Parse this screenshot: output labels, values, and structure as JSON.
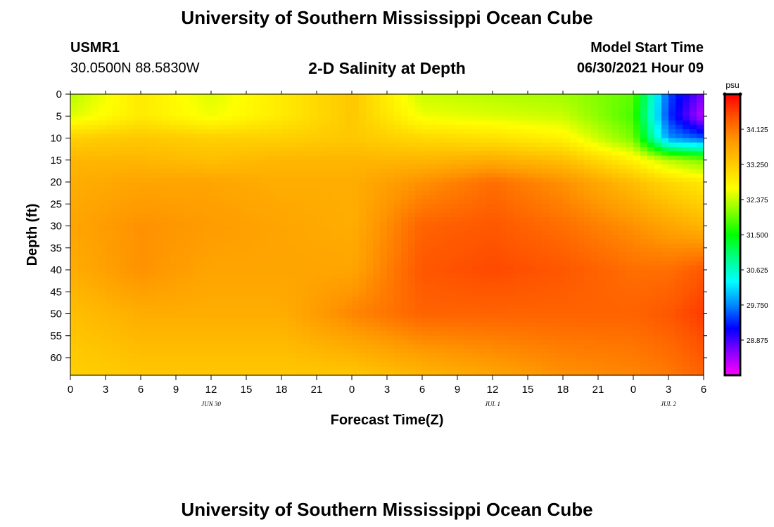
{
  "header": {
    "title": "University of Southern Mississippi Ocean Cube",
    "footer_title": "University of Southern Mississippi Ocean Cube",
    "station_id": "USMR1",
    "station_coords": "30.0500N  88.5830W",
    "plot_title": "2-D Salinity at Depth",
    "start_label": "Model Start Time",
    "start_value": "06/30/2021 Hour 09"
  },
  "chart_data": {
    "type": "heatmap",
    "title": "2-D Salinity at Depth",
    "xlabel": "Forecast Time(Z)",
    "ylabel": "Depth (ft)",
    "x_tick_labels": [
      "0",
      "3",
      "6",
      "9",
      "12",
      "15",
      "18",
      "21",
      "0",
      "3",
      "6",
      "9",
      "12",
      "15",
      "18",
      "21",
      "0",
      "3",
      "6"
    ],
    "x_hours": [
      0,
      3,
      6,
      9,
      12,
      15,
      18,
      21,
      24,
      27,
      30,
      33,
      36,
      39,
      42,
      45,
      48,
      51,
      54
    ],
    "date_labels": [
      {
        "hour": 12,
        "label": "JUN 30"
      },
      {
        "hour": 36,
        "label": "JUL 1"
      },
      {
        "hour": 51,
        "label": "JUL 2"
      }
    ],
    "y_ticks": [
      0,
      5,
      10,
      15,
      20,
      25,
      30,
      35,
      40,
      45,
      50,
      55,
      60
    ],
    "ylim": [
      0,
      64
    ],
    "xlim": [
      0,
      54
    ],
    "colorbar": {
      "unit": "psu",
      "tick_labels": [
        "34.125",
        "33.250",
        "32.375",
        "31.500",
        "30.625",
        "29.750",
        "28.875"
      ],
      "tick_values": [
        34.125,
        33.25,
        32.375,
        31.5,
        30.625,
        29.75,
        28.875
      ],
      "range": [
        28.0,
        35.0
      ],
      "colors": [
        "#ff00ff",
        "#8800ff",
        "#0000ff",
        "#0088ff",
        "#00ffff",
        "#00ff88",
        "#00ff00",
        "#88ff00",
        "#ffff00",
        "#ffcc00",
        "#ff9900",
        "#ff5500",
        "#ff0000"
      ]
    },
    "grid": {
      "hours": [
        0,
        6,
        12,
        18,
        24,
        30,
        36,
        42,
        48,
        51,
        54
      ],
      "depths": [
        0,
        5,
        10,
        15,
        20,
        30,
        40,
        50,
        64
      ],
      "values": [
        [
          32.3,
          32.9,
          32.5,
          32.9,
          33.3,
          32.4,
          32.3,
          32.2,
          31.9,
          29.5,
          28.6
        ],
        [
          32.5,
          32.9,
          32.6,
          32.9,
          33.3,
          32.6,
          32.5,
          32.4,
          31.8,
          29.4,
          28.3
        ],
        [
          33.2,
          33.3,
          33.2,
          33.2,
          33.3,
          33.1,
          33.0,
          32.8,
          32.0,
          29.8,
          29.5
        ],
        [
          33.5,
          33.5,
          33.4,
          33.5,
          33.5,
          33.5,
          33.6,
          33.4,
          32.8,
          32.3,
          32.0
        ],
        [
          33.6,
          33.7,
          33.7,
          33.6,
          33.6,
          33.9,
          34.2,
          33.9,
          33.4,
          33.1,
          32.9
        ],
        [
          33.7,
          33.9,
          33.8,
          33.7,
          33.6,
          34.3,
          34.4,
          34.2,
          33.9,
          33.7,
          33.5
        ],
        [
          33.6,
          33.9,
          33.7,
          33.7,
          33.7,
          34.4,
          34.5,
          34.4,
          34.2,
          34.2,
          34.4
        ],
        [
          33.4,
          33.6,
          33.6,
          33.6,
          34.0,
          34.3,
          34.3,
          34.3,
          34.3,
          34.4,
          34.6
        ],
        [
          33.2,
          33.3,
          33.3,
          33.3,
          33.3,
          33.5,
          33.7,
          33.9,
          34.0,
          34.1,
          34.3
        ]
      ]
    }
  }
}
